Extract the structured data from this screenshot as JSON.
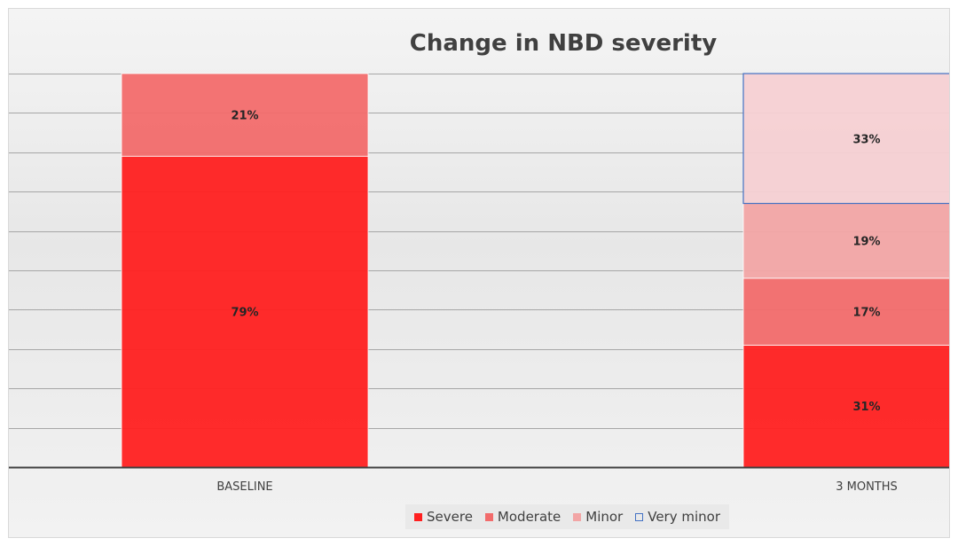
{
  "chart_data": {
    "type": "bar",
    "stacked": true,
    "percent_stacked": true,
    "title": "Change in NBD severity",
    "categories": [
      "BASELINE",
      "3 MONTHS"
    ],
    "ylim": [
      0,
      100
    ],
    "grid": true,
    "legend_position": "bottom",
    "series": [
      {
        "name": "Severe",
        "values": [
          79,
          31
        ],
        "labels": [
          "79%",
          "31%"
        ],
        "color": "#ff2020"
      },
      {
        "name": "Moderate",
        "values": [
          21,
          17
        ],
        "labels": [
          "21%",
          "17%"
        ],
        "color": "#f26c6c"
      },
      {
        "name": "Minor",
        "values": [
          0,
          19
        ],
        "labels": [
          "",
          "19%"
        ],
        "color": "#f2a5a5"
      },
      {
        "name": "Very minor",
        "values": [
          0,
          33
        ],
        "labels": [
          "",
          "33%"
        ],
        "color": "#f5d0d3",
        "border_color": "#4472c4"
      }
    ]
  }
}
